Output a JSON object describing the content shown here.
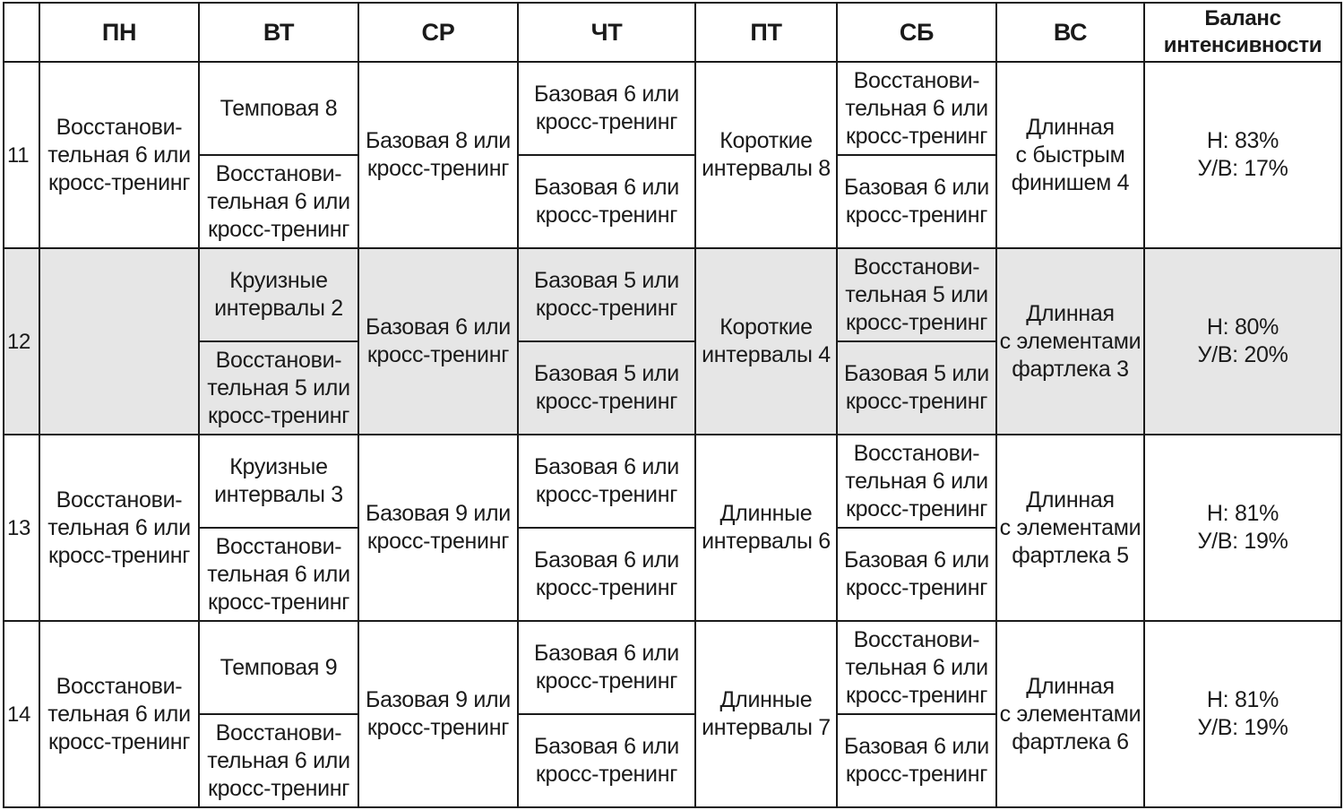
{
  "headers": [
    "",
    "ПН",
    "ВТ",
    "СР",
    "ЧТ",
    "ПТ",
    "СБ",
    "ВС",
    "Баланс\nинтенсивности"
  ],
  "weeks": [
    {
      "week": "11",
      "mon": "Восстанови-\nтельная 6 или\nкросс-тренинг",
      "tue": [
        "Темповая 8",
        "Восстанови-\nтельная 6 или\nкросс-тренинг"
      ],
      "wed": "Базовая 8 или\nкросс-тренинг",
      "thu": [
        "Базовая 6 или\nкросс-тренинг",
        "Базовая 6 или\nкросс-тренинг"
      ],
      "fri": "Короткие\nинтервалы 8",
      "sat": [
        "Восстанови-\nтельная 6 или\nкросс-тренинг",
        "Базовая 6 или\nкросс-тренинг"
      ],
      "sun": "Длинная\nс быстрым\nфинишем 4",
      "balance": "Н: 83%\nУ/В: 17%"
    },
    {
      "week": "12",
      "mon": "",
      "tue": [
        "Круизные\nинтервалы 2",
        "Восстанови-\nтельная 5 или\nкросс-тренинг"
      ],
      "wed": "Базовая 6 или\nкросс-тренинг",
      "thu": [
        "Базовая 5 или\nкросс-тренинг",
        "Базовая 5 или\nкросс-тренинг"
      ],
      "fri": "Короткие\nинтервалы 4",
      "sat": [
        "Восстанови-\nтельная 5 или\nкросс-тренинг",
        "Базовая 5 или\nкросс-тренинг"
      ],
      "sun": "Длинная\nс элементами\nфартлека 3",
      "balance": "Н: 80%\nУ/В: 20%"
    },
    {
      "week": "13",
      "mon": "Восстанови-\nтельная 6 или\nкросс-тренинг",
      "tue": [
        "Круизные\nинтервалы 3",
        "Восстанови-\nтельная 6 или\nкросс-тренинг"
      ],
      "wed": "Базовая 9 или\nкросс-тренинг",
      "thu": [
        "Базовая 6 или\nкросс-тренинг",
        "Базовая 6 или\nкросс-тренинг"
      ],
      "fri": "Длинные\nинтервалы 6",
      "sat": [
        "Восстанови-\nтельная 6 или\nкросс-тренинг",
        "Базовая 6 или\nкросс-тренинг"
      ],
      "sun": "Длинная\nс элементами\nфартлека 5",
      "balance": "Н: 81%\nУ/В: 19%"
    },
    {
      "week": "14",
      "mon": "Восстанови-\nтельная 6 или\nкросс-тренинг",
      "tue": [
        "Темповая 9",
        "Восстанови-\nтельная 6 или\nкросс-тренинг"
      ],
      "wed": "Базовая 9 или\nкросс-тренинг",
      "thu": [
        "Базовая 6 или\nкросс-тренинг",
        "Базовая 6 или\nкросс-тренинг"
      ],
      "fri": "Длинные\nинтервалы 7",
      "sat": [
        "Восстанови-\nтельная 6 или\nкросс-тренинг",
        "Базовая 6 или\nкросс-тренинг"
      ],
      "sun": "Длинная\nс элементами\nфартлека 6",
      "balance": "Н: 81%\nУ/В: 19%"
    }
  ],
  "colors": {
    "border": "#1a1a1a",
    "shaded_row": "#e6e6e6",
    "text": "#1a1a1a"
  }
}
